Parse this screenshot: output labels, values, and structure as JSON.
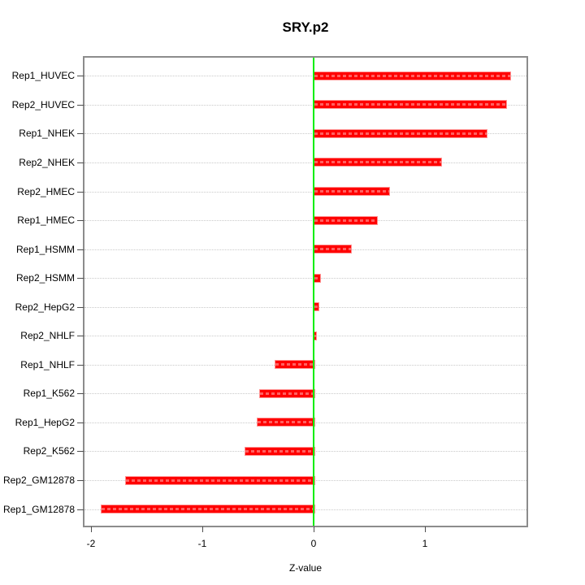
{
  "chart_data": {
    "type": "bar",
    "orientation": "horizontal",
    "title": "SRY.p2",
    "xlabel": "Z-value",
    "ylabel": "",
    "categories_top_to_bottom": [
      "Rep1_HUVEC",
      "Rep2_HUVEC",
      "Rep1_NHEK",
      "Rep2_NHEK",
      "Rep2_HMEC",
      "Rep1_HMEC",
      "Rep1_HSMM",
      "Rep2_HSMM",
      "Rep2_HepG2",
      "Rep2_NHLF",
      "Rep1_NHLF",
      "Rep1_K562",
      "Rep1_HepG2",
      "Rep2_K562",
      "Rep2_GM12878",
      "Rep1_GM12878"
    ],
    "values": [
      1.76,
      1.72,
      1.55,
      1.14,
      0.67,
      0.56,
      0.33,
      0.05,
      0.04,
      0.01,
      -0.35,
      -0.49,
      -0.51,
      -0.62,
      -1.69,
      -1.91
    ],
    "x_ticks": [
      -2,
      -1,
      0,
      1
    ],
    "x_tick_labels": [
      "-2",
      "-1",
      "0",
      "1"
    ],
    "xlim": [
      -2.06,
      1.91
    ],
    "grid": "horizontal dotted line per category",
    "legend": "none",
    "colors": {
      "bar_fill": "#ff0000",
      "bar_border": "#ff9393",
      "zero_line": "#00ee00",
      "gridline": "#c9c9c9",
      "plot_border": "#8c8c8c",
      "text": "#000000"
    }
  }
}
